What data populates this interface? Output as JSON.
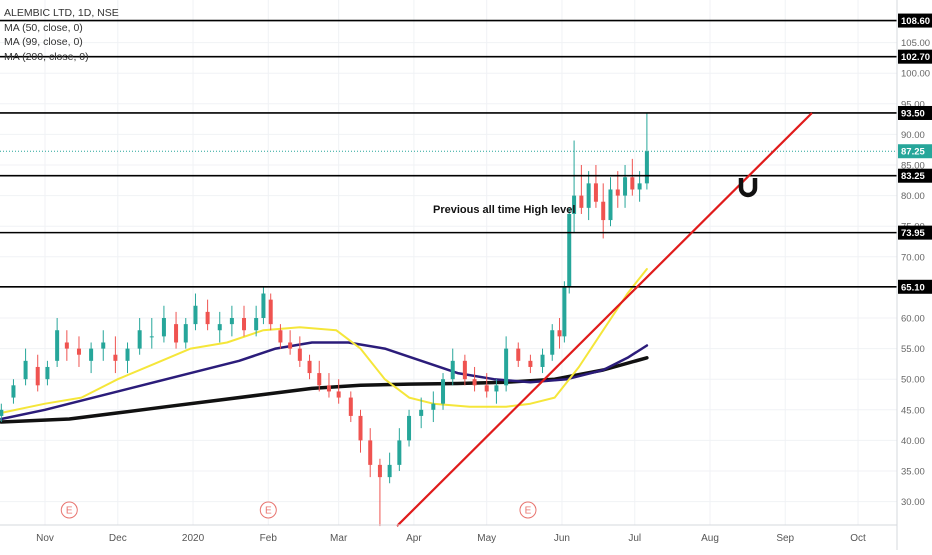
{
  "legend": {
    "symbol": "ALEMBIC LTD, 1D, NSE",
    "ma1": "MA (50, close, 0)",
    "ma2": "MA (99, close, 0)",
    "ma3": "MA (200, close, 0)"
  },
  "chart_data": {
    "type": "candlestick",
    "annotation": "Previous all time High level",
    "y_axis_ticks": [
      30,
      35,
      40,
      45,
      50,
      55,
      60,
      65,
      70,
      75,
      80,
      85,
      90,
      95,
      100,
      105
    ],
    "x_axis_labels": [
      {
        "label": "Nov",
        "day": 0
      },
      {
        "label": "Dec",
        "day": 30
      },
      {
        "label": "2020",
        "day": 61
      },
      {
        "label": "Feb",
        "day": 92
      },
      {
        "label": "Mar",
        "day": 121
      },
      {
        "label": "Apr",
        "day": 152
      },
      {
        "label": "May",
        "day": 182
      },
      {
        "label": "Jun",
        "day": 213
      },
      {
        "label": "Jul",
        "day": 243
      },
      {
        "label": "Aug",
        "day": 274
      },
      {
        "label": "Sep",
        "day": 305
      },
      {
        "label": "Oct",
        "day": 335
      }
    ],
    "horizontal_levels": [
      108.6,
      102.7,
      93.5,
      83.25,
      73.95,
      65.1
    ],
    "current_price": 87.25,
    "earnings_markers": [
      {
        "label": "E",
        "day": 10
      },
      {
        "label": "E",
        "day": 92
      },
      {
        "label": "E",
        "day": 199
      }
    ],
    "trendline": {
      "from": {
        "day": 145,
        "price": 26.0
      },
      "to": {
        "day": 316,
        "price": 93.5
      }
    },
    "price_path": [
      [
        -18,
        44,
        46,
        43,
        45
      ],
      [
        -13,
        47,
        50,
        46,
        49
      ],
      [
        -8,
        50,
        55,
        49,
        53
      ],
      [
        -3,
        52,
        54,
        48,
        49
      ],
      [
        1,
        50,
        53,
        49,
        52
      ],
      [
        5,
        53,
        60,
        52,
        58
      ],
      [
        9,
        56,
        58,
        53,
        55
      ],
      [
        14,
        55,
        57,
        52,
        54
      ],
      [
        19,
        53,
        56,
        51,
        55
      ],
      [
        24,
        55,
        58,
        53,
        56
      ],
      [
        29,
        54,
        57,
        51,
        53
      ],
      [
        34,
        53,
        56,
        51,
        55
      ],
      [
        39,
        55,
        60,
        54,
        58
      ],
      [
        44,
        57,
        60,
        55,
        57
      ],
      [
        49,
        57,
        62,
        56,
        60
      ],
      [
        54,
        59,
        61,
        55,
        56
      ],
      [
        58,
        56,
        60,
        55,
        59
      ],
      [
        62,
        59,
        64,
        58,
        62
      ],
      [
        67,
        61,
        63,
        58,
        59
      ],
      [
        72,
        58,
        61,
        56,
        59
      ],
      [
        77,
        59,
        62,
        57,
        60
      ],
      [
        82,
        60,
        62,
        57,
        58
      ],
      [
        87,
        58,
        62,
        57,
        60
      ],
      [
        90,
        60,
        65,
        59,
        64
      ],
      [
        93,
        63,
        64,
        58,
        59
      ],
      [
        97,
        58,
        59,
        55,
        56
      ],
      [
        101,
        56,
        58,
        54,
        55
      ],
      [
        105,
        55,
        57,
        52,
        53
      ],
      [
        109,
        53,
        54,
        50,
        51
      ],
      [
        113,
        51,
        53,
        48,
        49
      ],
      [
        117,
        49,
        51,
        47,
        48
      ],
      [
        121,
        48,
        50,
        46,
        47
      ],
      [
        126,
        47,
        48,
        43,
        44
      ],
      [
        130,
        44,
        45,
        38,
        40
      ],
      [
        134,
        40,
        42,
        34,
        36
      ],
      [
        138,
        36,
        37,
        26,
        34
      ],
      [
        142,
        34,
        38,
        33,
        36
      ],
      [
        146,
        36,
        42,
        35,
        40
      ],
      [
        150,
        40,
        45,
        39,
        44
      ],
      [
        155,
        44,
        47,
        42,
        45
      ],
      [
        160,
        45,
        48,
        43,
        46
      ],
      [
        164,
        46,
        51,
        45,
        50
      ],
      [
        168,
        50,
        55,
        49,
        53
      ],
      [
        173,
        53,
        54,
        49,
        50
      ],
      [
        177,
        50,
        52,
        48,
        49
      ],
      [
        182,
        49,
        51,
        47,
        48
      ],
      [
        186,
        48,
        50,
        46,
        49
      ],
      [
        190,
        49,
        57,
        48,
        55
      ],
      [
        195,
        55,
        56,
        52,
        53
      ],
      [
        200,
        53,
        54,
        51,
        52
      ],
      [
        205,
        52,
        55,
        51,
        54
      ],
      [
        209,
        54,
        59,
        53,
        58
      ],
      [
        212,
        58,
        60,
        55,
        57
      ],
      [
        214,
        57,
        66,
        56,
        65
      ],
      [
        216,
        65,
        78,
        64,
        77
      ],
      [
        218,
        77,
        89,
        74,
        80
      ],
      [
        221,
        80,
        85,
        77,
        78
      ],
      [
        224,
        78,
        84,
        76,
        82
      ],
      [
        227,
        82,
        85,
        78,
        79
      ],
      [
        230,
        79,
        82,
        73,
        76
      ],
      [
        233,
        76,
        83,
        75,
        81
      ],
      [
        236,
        81,
        84,
        78,
        80
      ],
      [
        239,
        80,
        85,
        78,
        83
      ],
      [
        242,
        83,
        86,
        80,
        81
      ],
      [
        245,
        81,
        84,
        79,
        82
      ],
      [
        248,
        82,
        93.5,
        81,
        87.25
      ]
    ],
    "ma50": [
      [
        -18,
        44.5
      ],
      [
        0,
        46
      ],
      [
        15,
        47
      ],
      [
        30,
        50
      ],
      [
        45,
        52.5
      ],
      [
        60,
        55
      ],
      [
        75,
        56
      ],
      [
        90,
        58
      ],
      [
        105,
        58.5
      ],
      [
        120,
        58
      ],
      [
        130,
        55
      ],
      [
        140,
        50
      ],
      [
        150,
        47
      ],
      [
        160,
        46
      ],
      [
        175,
        45.5
      ],
      [
        190,
        45.5
      ],
      [
        200,
        46
      ],
      [
        210,
        47
      ],
      [
        220,
        52
      ],
      [
        230,
        58
      ],
      [
        240,
        64
      ],
      [
        248,
        68
      ]
    ],
    "ma99": [
      [
        -18,
        43.5
      ],
      [
        0,
        45
      ],
      [
        20,
        47
      ],
      [
        40,
        49
      ],
      [
        60,
        51
      ],
      [
        80,
        53
      ],
      [
        95,
        55
      ],
      [
        110,
        56
      ],
      [
        125,
        56
      ],
      [
        140,
        55
      ],
      [
        155,
        53
      ],
      [
        170,
        51
      ],
      [
        185,
        50
      ],
      [
        200,
        49.5
      ],
      [
        215,
        50
      ],
      [
        230,
        51.5
      ],
      [
        240,
        53.5
      ],
      [
        248,
        55.5
      ]
    ],
    "ma200": [
      [
        -18,
        43
      ],
      [
        10,
        43.5
      ],
      [
        30,
        44.5
      ],
      [
        50,
        45.5
      ],
      [
        70,
        46.5
      ],
      [
        90,
        47.5
      ],
      [
        110,
        48.5
      ],
      [
        130,
        49
      ],
      [
        150,
        49.2
      ],
      [
        170,
        49.3
      ],
      [
        190,
        49.5
      ],
      [
        210,
        50
      ],
      [
        230,
        51.5
      ],
      [
        248,
        53.5
      ]
    ],
    "colors": {
      "up": "#26a69a",
      "down": "#ef5350",
      "ma50": "#f5e63a",
      "ma99": "#2b1c7a",
      "ma200": "#111111",
      "trendline": "#e01b1b",
      "level": "#000000",
      "current": "#26a69a",
      "earnings": "#e8746f"
    }
  }
}
